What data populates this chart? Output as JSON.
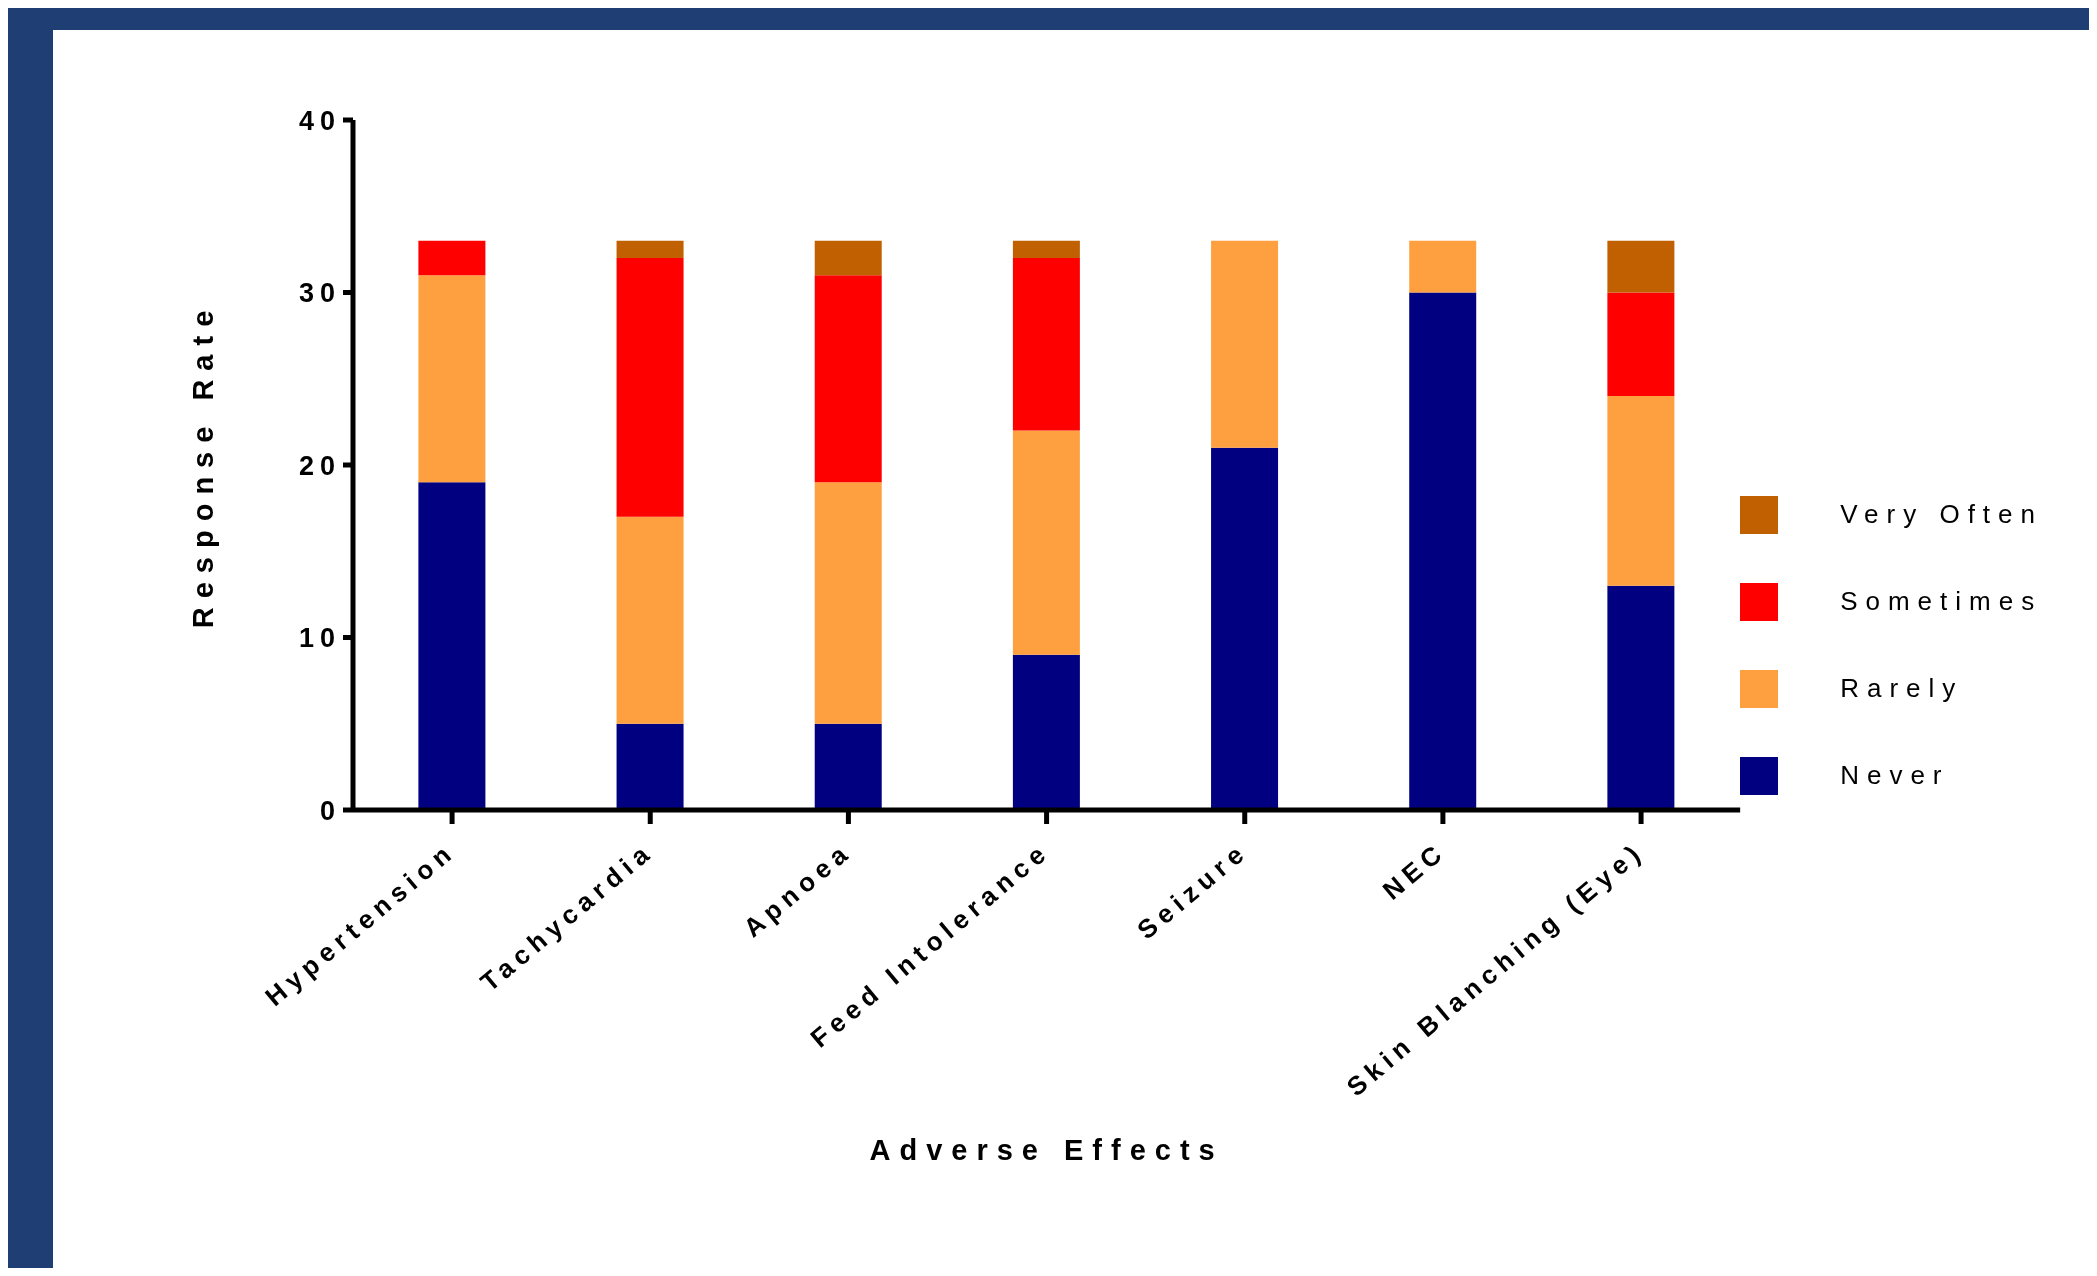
{
  "chart_data": {
    "type": "bar",
    "stacked": true,
    "xlabel": "Adverse Effects",
    "ylabel": "Response Rate",
    "categories": [
      "Hypertension",
      "Tachycardia",
      "Apnoea",
      "Feed Intolerance",
      "Seizure",
      "NEC",
      "Skin Blanching (Eye)"
    ],
    "series": [
      {
        "name": "Never",
        "color": "#000080",
        "values": [
          19,
          5,
          5,
          9,
          21,
          30,
          13
        ]
      },
      {
        "name": "Rarely",
        "color": "#ffa040",
        "values": [
          12,
          12,
          14,
          13,
          12,
          3,
          11
        ]
      },
      {
        "name": "Sometimes",
        "color": "#ff0000",
        "values": [
          2,
          15,
          12,
          10,
          0,
          0,
          6
        ]
      },
      {
        "name": "Very Often",
        "color": "#c06000",
        "values": [
          0,
          1,
          2,
          1,
          0,
          0,
          3
        ]
      }
    ],
    "ylim": [
      0,
      40
    ],
    "yticks": [
      0,
      10,
      20,
      30,
      40
    ],
    "grid": false,
    "legend": "right"
  }
}
